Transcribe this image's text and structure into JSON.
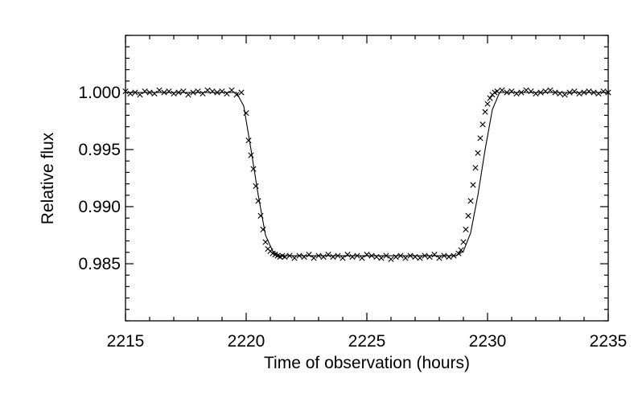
{
  "chart_data": {
    "type": "scatter",
    "title": "",
    "xlabel": "Time of observation (hours)",
    "ylabel": "Relative flux",
    "xlim": [
      2215,
      2235
    ],
    "ylim": [
      0.98,
      1.005
    ],
    "x_ticks": [
      2215,
      2220,
      2225,
      2230,
      2235
    ],
    "x_tick_labels": [
      "2215",
      "2220",
      "2225",
      "2230",
      "2235"
    ],
    "y_ticks": [
      0.985,
      0.99,
      0.995,
      1.0
    ],
    "y_tick_labels": [
      "0.985",
      "0.990",
      "0.995",
      "1.000"
    ],
    "grid": false,
    "marker": "x",
    "series": [
      {
        "kind": "points",
        "x": [
          2215.0,
          2215.2,
          2215.4,
          2215.6,
          2215.8,
          2216.0,
          2216.2,
          2216.4,
          2216.6,
          2216.8,
          2217.0,
          2217.2,
          2217.4,
          2217.6,
          2217.8,
          2218.0,
          2218.2,
          2218.4,
          2218.6,
          2218.8,
          2219.0,
          2219.2,
          2219.4,
          2219.6,
          2219.8,
          2220.0,
          2220.1,
          2220.2,
          2220.3,
          2220.4,
          2220.5,
          2220.6,
          2220.7,
          2220.8,
          2220.9,
          2221.0,
          2221.1,
          2221.2,
          2221.3,
          2221.4,
          2221.5,
          2221.6,
          2221.8,
          2222.0,
          2222.2,
          2222.4,
          2222.6,
          2222.8,
          2223.0,
          2223.2,
          2223.4,
          2223.6,
          2223.8,
          2224.0,
          2224.2,
          2224.4,
          2224.6,
          2224.8,
          2225.0,
          2225.2,
          2225.4,
          2225.6,
          2225.8,
          2226.0,
          2226.2,
          2226.4,
          2226.6,
          2226.8,
          2227.0,
          2227.2,
          2227.4,
          2227.6,
          2227.8,
          2228.0,
          2228.2,
          2228.4,
          2228.6,
          2228.8,
          2228.9,
          2229.0,
          2229.1,
          2229.2,
          2229.3,
          2229.4,
          2229.5,
          2229.6,
          2229.7,
          2229.8,
          2229.9,
          2230.0,
          2230.1,
          2230.2,
          2230.3,
          2230.4,
          2230.6,
          2230.8,
          2231.0,
          2231.2,
          2231.4,
          2231.6,
          2231.8,
          2232.0,
          2232.2,
          2232.4,
          2232.6,
          2232.8,
          2233.0,
          2233.2,
          2233.4,
          2233.6,
          2233.8,
          2234.0,
          2234.2,
          2234.4,
          2234.6,
          2234.8,
          2235.0
        ],
        "y": [
          1.0001,
          0.9999,
          1.0,
          0.9998,
          1.0001,
          1.0,
          0.9999,
          1.0002,
          1.0,
          1.0001,
          0.9999,
          1.0,
          1.0001,
          0.9998,
          1.0,
          1.0001,
          0.9999,
          1.0002,
          1.0001,
          1.0,
          1.0001,
          0.9999,
          1.0002,
          0.9998,
          1.0,
          0.9982,
          0.9958,
          0.9945,
          0.9933,
          0.9918,
          0.9905,
          0.9892,
          0.988,
          0.9869,
          0.9863,
          0.9861,
          0.9859,
          0.9858,
          0.9857,
          0.9856,
          0.9857,
          0.9856,
          0.9857,
          0.9855,
          0.9857,
          0.9856,
          0.9858,
          0.9855,
          0.9857,
          0.9856,
          0.9858,
          0.9856,
          0.9857,
          0.9855,
          0.9858,
          0.9856,
          0.9857,
          0.9855,
          0.9858,
          0.9857,
          0.9856,
          0.9855,
          0.9857,
          0.9854,
          0.9856,
          0.9857,
          0.9855,
          0.9857,
          0.9856,
          0.9855,
          0.9857,
          0.9856,
          0.9858,
          0.9855,
          0.9857,
          0.9856,
          0.9857,
          0.9859,
          0.9862,
          0.9869,
          0.988,
          0.9892,
          0.9905,
          0.9919,
          0.9934,
          0.9947,
          0.996,
          0.9972,
          0.9983,
          0.999,
          0.9995,
          0.9998,
          1.0,
          1.0001,
          1.0002,
          1.0,
          1.0001,
          0.9999,
          1.0,
          1.0002,
          1.0001,
          0.9999,
          1.0,
          1.0001,
          1.0002,
          1.0,
          0.9999,
          0.9998,
          1.0,
          1.0001,
          0.9999,
          1.0,
          1.0001,
          1.0,
          0.9999,
          1.0001,
          1.0
        ]
      },
      {
        "kind": "model-line",
        "x": [
          2215,
          2219.6,
          2219.9,
          2220.2,
          2220.5,
          2220.8,
          2221.1,
          2221.4,
          2221.7,
          2228.7,
          2229.0,
          2229.3,
          2229.6,
          2229.9,
          2230.2,
          2230.5,
          2235
        ],
        "y": [
          1.0,
          1.0,
          0.9988,
          0.995,
          0.991,
          0.9875,
          0.9861,
          0.9857,
          0.9857,
          0.9857,
          0.9861,
          0.9877,
          0.991,
          0.995,
          0.9985,
          1.0,
          1.0
        ]
      }
    ]
  }
}
